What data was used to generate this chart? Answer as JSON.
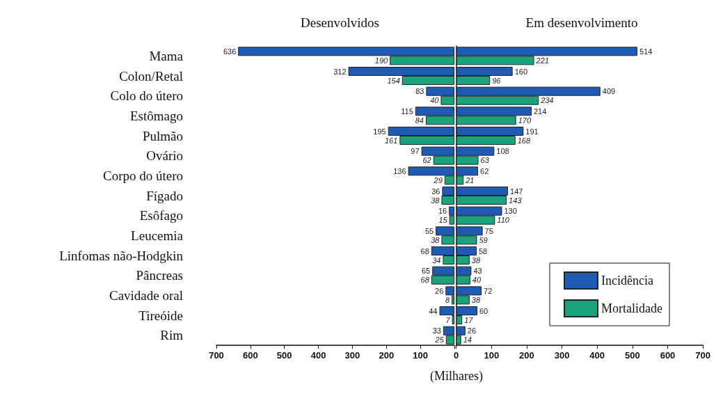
{
  "chart_data": [
    {
      "type": "bar",
      "orientation": "horizontal",
      "data_labels": true,
      "title": "Desenvolvidos",
      "xlabel": "(Milhares)",
      "categories": [
        "Mama",
        "Colon/Retal",
        "Colo do útero",
        "Estômago",
        "Pulmão",
        "Ovário",
        "Corpo do útero",
        "Fígado",
        "Esôfago",
        "Leucemia",
        "Linfomas não-Hodgkin",
        "Pâncreas",
        "Cavidade oral",
        "Tireóide",
        "Rim"
      ],
      "series": [
        {
          "color": "#1f5bb5",
          "values": [
            636,
            312,
            83,
            115,
            195,
            97,
            136,
            36,
            16,
            55,
            68,
            65,
            26,
            44,
            33
          ]
        },
        {
          "color": "#1ba37c",
          "values": [
            190,
            154,
            40,
            84,
            161,
            62,
            29,
            38,
            15,
            38,
            34,
            68,
            8,
            7,
            25
          ]
        }
      ],
      "xlim": [
        700,
        0
      ],
      "xticks": [
        700,
        600,
        500,
        400,
        300,
        200,
        100,
        {
          "value": 0,
          "label": null
        }
      ],
      "grid": false
    },
    {
      "type": "bar",
      "orientation": "horizontal",
      "data_labels": true,
      "title": "Em desenvolvimento",
      "categories": [
        null,
        null,
        null,
        null,
        null,
        null,
        null,
        null,
        null,
        null,
        null,
        null,
        null,
        null,
        null
      ],
      "series": [
        {
          "name": "Incidência",
          "color": "#1f5bb5",
          "values": [
            514,
            160,
            409,
            214,
            191,
            108,
            62,
            147,
            130,
            75,
            58,
            43,
            72,
            60,
            26
          ]
        },
        {
          "name": "Mortalidade",
          "color": "#1ba37c",
          "values": [
            221,
            96,
            234,
            170,
            168,
            63,
            21,
            143,
            110,
            59,
            38,
            40,
            38,
            17,
            14
          ]
        }
      ],
      "xlim": [
        0,
        700
      ],
      "xticks": [
        0,
        100,
        200,
        300,
        400,
        500,
        600,
        700
      ],
      "tick_labels": "x",
      "grid": false,
      "legend": "bottom right"
    }
  ]
}
